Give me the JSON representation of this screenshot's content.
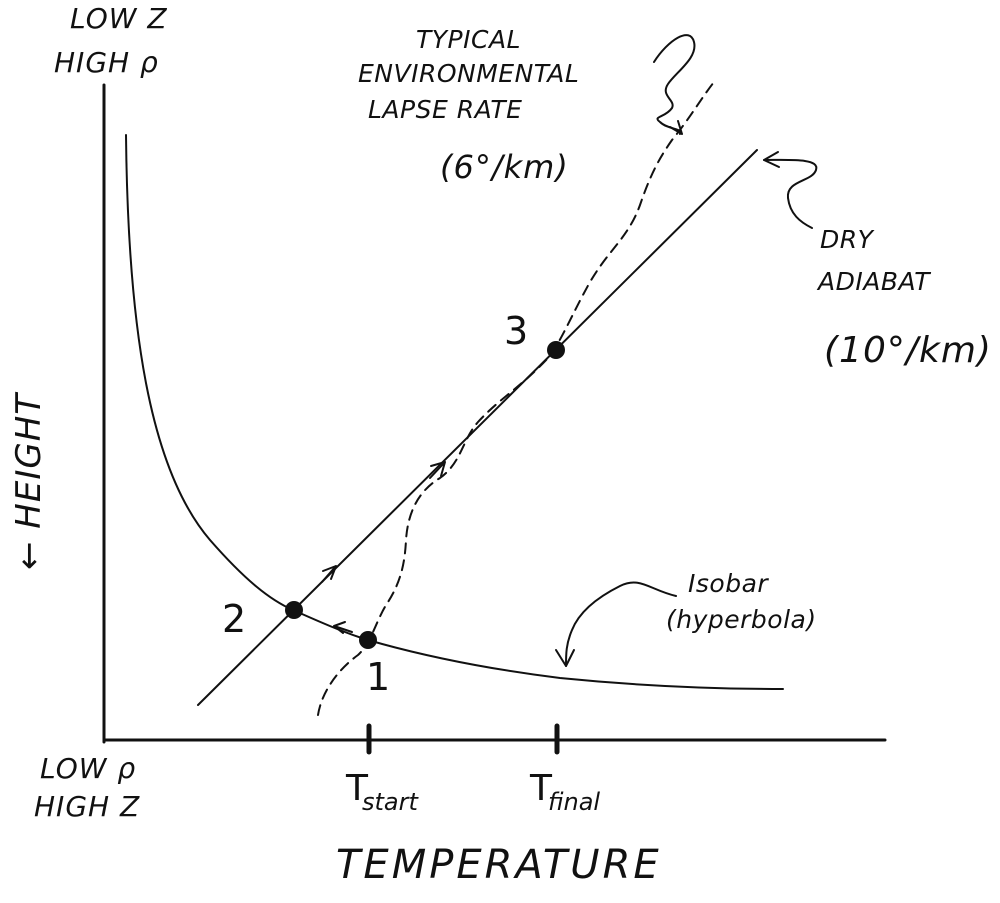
{
  "labels": {
    "top_left_line1": "LOW Z",
    "top_left_line2": "HIGH ρ",
    "bottom_left_line1": "LOW ρ",
    "bottom_left_line2": "HIGH Z",
    "y_axis": "← HEIGHT",
    "x_axis": "TEMPERATURE",
    "env_line1": "TYPICAL",
    "env_line2": "ENVIRONMENTAL",
    "env_line3": "LAPSE RATE",
    "env_line4": "(6°/km)",
    "dry_line1": "DRY",
    "dry_line2": "ADIABAT",
    "dry_line3": "(10°/km)",
    "isobar_line1": "Isobar",
    "isobar_line2": "(hyperbola)",
    "point1": "1",
    "point2": "2",
    "point3": "3",
    "t_start_main": "T",
    "t_start_sub": "start",
    "t_final_main": "T",
    "t_final_sub": "final"
  },
  "colors": {
    "ink": "#111111",
    "background": "#ffffff"
  }
}
